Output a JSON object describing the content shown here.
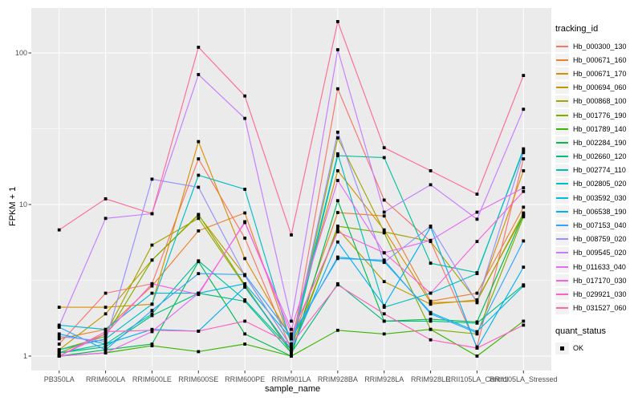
{
  "figure": {
    "background": "#FFFFFF",
    "panel_background": "#EBEBEB",
    "grid_color": "#FFFFFF",
    "tick_mark_color": "#333333",
    "tick_label_color": "#4D4D4D",
    "point_color": "#000000"
  },
  "axes": {
    "x_title": "sample_name",
    "y_title": "FPKM + 1",
    "y_scale": "log10",
    "y_tick_labels": [
      "100",
      "10",
      "1"
    ],
    "y_tick_values": [
      100,
      10,
      1
    ]
  },
  "legend": {
    "tracking_title": "tracking_id",
    "quant_title": "quant_status",
    "quant_label": "OK",
    "quant_shape": "filled-black-square"
  },
  "chart_data": {
    "type": "line",
    "title": "",
    "xlabel": "sample_name",
    "ylabel": "FPKM + 1",
    "y_scale": "log10",
    "ylim": [
      1,
      200
    ],
    "y_major_ticks": [
      1,
      10,
      100
    ],
    "y_minor_ticks": [
      3.1623,
      31.623
    ],
    "grid": true,
    "legend_position": "right",
    "point_marker": "black-square (quant_status = OK)",
    "categories": [
      "PB350LA",
      "RRIM600LA",
      "RRIM600LE",
      "RRIM600SE",
      "RRIM600PE",
      "RRIM901LA",
      "RRIM928BA",
      "RRIM928LA",
      "RRIM928LE",
      "RRII105LA_Control",
      "RRII105LA_Stressed"
    ],
    "series": [
      {
        "name": "Hb_000300_130",
        "color": "#F8766D",
        "values": [
          1.2,
          2.6,
          3.0,
          20,
          6.0,
          1.1,
          58,
          10.7,
          5.7,
          1.15,
          20
        ]
      },
      {
        "name": "Hb_000671_160",
        "color": "#EA8331",
        "values": [
          1.3,
          1.5,
          2.9,
          6.7,
          8.8,
          1.2,
          8.85,
          8.4,
          2.3,
          2.6,
          9.6
        ]
      },
      {
        "name": "Hb_000671_170",
        "color": "#D89000",
        "values": [
          2.1,
          2.1,
          2.2,
          26,
          4.4,
          1.3,
          16.7,
          6.8,
          2.25,
          2.3,
          16.7
        ]
      },
      {
        "name": "Hb_000694_060",
        "color": "#C09B00",
        "values": [
          1.1,
          1.9,
          4.3,
          8.5,
          3.4,
          1.15,
          6.9,
          3.1,
          2.2,
          2.35,
          8.5
        ]
      },
      {
        "name": "Hb_000868_100",
        "color": "#A3A500",
        "values": [
          1.05,
          1.4,
          5.4,
          8.1,
          2.9,
          1.1,
          27.5,
          6.6,
          5.7,
          2.3,
          8.8
        ]
      },
      {
        "name": "Hb_001776_190",
        "color": "#7CAE00",
        "values": [
          1.1,
          1.35,
          4.3,
          8.6,
          2.95,
          1.05,
          7.2,
          6.5,
          1.5,
          1.4,
          8.3
        ]
      },
      {
        "name": "Hb_001789_140",
        "color": "#39B600",
        "values": [
          1.0,
          1.05,
          1.17,
          1.07,
          1.2,
          1.0,
          1.48,
          1.4,
          1.5,
          1.0,
          1.7
        ]
      },
      {
        "name": "Hb_002284_190",
        "color": "#00BB4E",
        "values": [
          1.0,
          1.1,
          1.2,
          4.2,
          1.4,
          1.0,
          10.6,
          1.7,
          1.75,
          1.68,
          8.6
        ]
      },
      {
        "name": "Hb_002660_120",
        "color": "#00BF7D",
        "values": [
          1.05,
          1.15,
          1.85,
          2.6,
          2.3,
          1.05,
          3.0,
          1.7,
          1.7,
          1.65,
          2.95
        ]
      },
      {
        "name": "Hb_002774_110",
        "color": "#00C1A3",
        "values": [
          1.05,
          1.2,
          1.9,
          4.25,
          2.35,
          1.1,
          21.0,
          20.4,
          4.1,
          3.55,
          22.8
        ]
      },
      {
        "name": "Hb_002805_020",
        "color": "#00BFC4",
        "values": [
          1.1,
          1.3,
          2.2,
          15.6,
          12.6,
          1.2,
          21.6,
          2.1,
          2.6,
          3.5,
          23.3
        ]
      },
      {
        "name": "Hb_003592_030",
        "color": "#00BAE0",
        "values": [
          1.6,
          1.5,
          2.6,
          2.6,
          3.0,
          1.3,
          4.5,
          4.2,
          1.94,
          1.45,
          2.9
        ]
      },
      {
        "name": "Hb_006538_190",
        "color": "#00B0F6",
        "values": [
          1.4,
          1.2,
          1.5,
          1.46,
          2.85,
          1.1,
          5.66,
          2.15,
          7.1,
          1.13,
          3.86
        ]
      },
      {
        "name": "Hb_007153_040",
        "color": "#35A2FF",
        "values": [
          1.55,
          1.1,
          2.0,
          3.5,
          3.45,
          1.35,
          4.4,
          4.3,
          1.9,
          1.42,
          5.75
        ]
      },
      {
        "name": "Hb_008759_020",
        "color": "#9590FF",
        "values": [
          1.35,
          1.25,
          14.7,
          13.0,
          3.4,
          1.15,
          30,
          4.15,
          7.2,
          2.25,
          22.0
        ]
      },
      {
        "name": "Hb_009545_020",
        "color": "#C77CFF",
        "values": [
          1.58,
          8.1,
          8.7,
          72,
          37,
          1.7,
          105,
          8.9,
          13.5,
          8.0,
          42.5
        ]
      },
      {
        "name": "Hb_011633_040",
        "color": "#E76BF3",
        "values": [
          1.0,
          1.05,
          1.45,
          2.6,
          7.6,
          1.5,
          14.4,
          4.8,
          5.8,
          8.9,
          12.9
        ]
      },
      {
        "name": "Hb_017170_030",
        "color": "#FA62DB",
        "values": [
          1.0,
          1.4,
          3.0,
          2.55,
          7.7,
          1.4,
          6.6,
          4.8,
          2.6,
          5.7,
          12.2
        ]
      },
      {
        "name": "Hb_029921_030",
        "color": "#FF61C3",
        "values": [
          1.0,
          1.45,
          1.48,
          1.46,
          1.7,
          1.2,
          2.95,
          1.9,
          1.28,
          1.13,
          1.6
        ]
      },
      {
        "name": "Hb_031527_060",
        "color": "#FF6A98",
        "values": [
          6.8,
          10.9,
          8.7,
          109,
          52,
          6.3,
          161,
          23.7,
          16.7,
          11.7,
          71
        ]
      }
    ]
  }
}
